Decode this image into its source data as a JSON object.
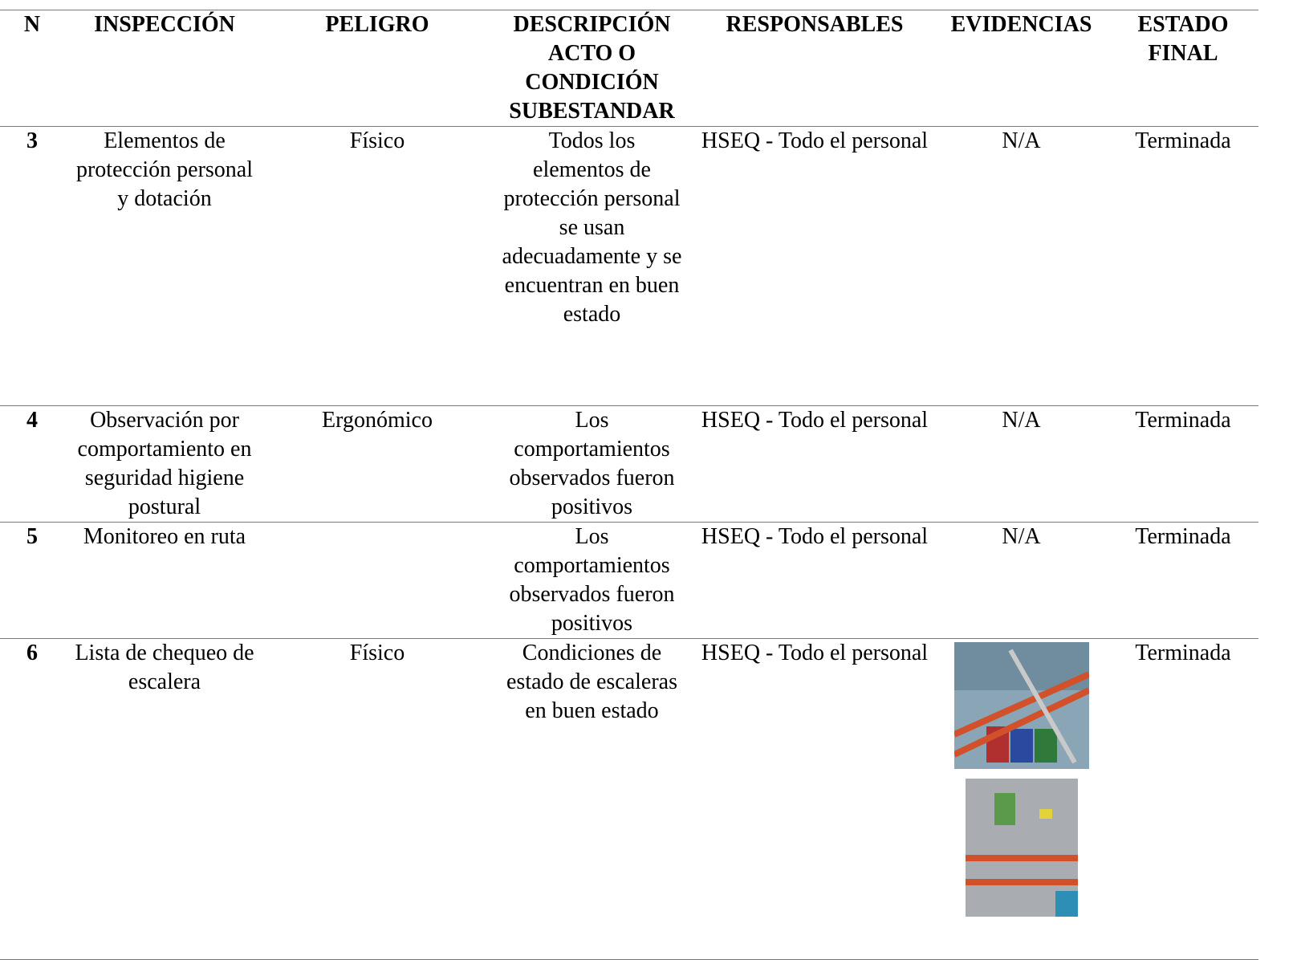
{
  "table": {
    "header": [
      "N",
      "INSPECCIÓN",
      "PELIGRO",
      "DESCRIPCIÓN ACTO O CONDICIÓN SUBESTANDAR",
      "RESPONSABLES",
      "EVIDENCIAS",
      "ESTADO FINAL"
    ],
    "rows": [
      {
        "n": "3",
        "inspeccion": "Elementos de protección personal y dotación",
        "peligro": "Físico",
        "descripcion": "Todos los elementos de protección personal se usan adecuadamente y se encuentran en buen estado",
        "responsables": "HSEQ - Todo el personal",
        "evidencias": "N/A",
        "estado": "Terminada"
      },
      {
        "n": "4",
        "inspeccion": "Observación por comportamiento en seguridad higiene postural",
        "peligro": "Ergonómico",
        "descripcion": "Los comportamientos observados fueron positivos",
        "responsables": "HSEQ - Todo el personal",
        "evidencias": "N/A",
        "estado": "Terminada"
      },
      {
        "n": "5",
        "inspeccion": "Monitoreo en ruta",
        "descripcion": "Los comportamientos observados fueron positivos",
        "responsables": "HSEQ - Todo el personal",
        "evidencias": "N/A",
        "estado": "Terminada"
      },
      {
        "n": "6",
        "inspeccion": "Lista de chequeo de escalera",
        "peligro": "Físico",
        "descripcion": "Condiciones de estado de escaleras en buen estado",
        "responsables": "HSEQ - Todo el personal",
        "estado": "Terminada"
      }
    ]
  }
}
